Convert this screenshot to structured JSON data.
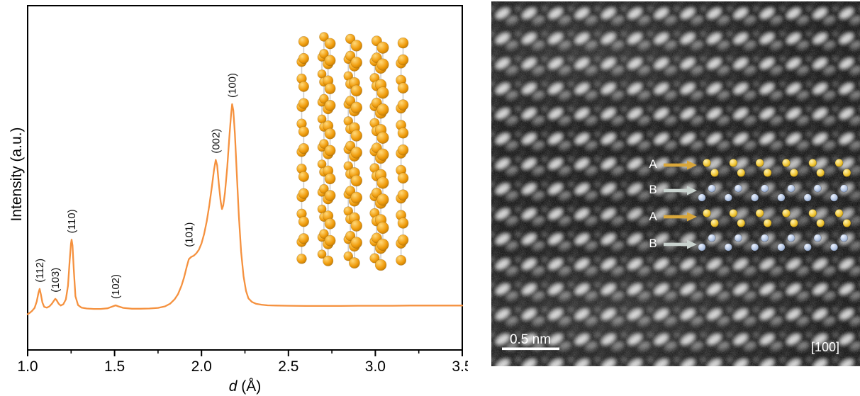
{
  "figure": {
    "background": "#ffffff"
  },
  "xrd_panel": {
    "ylabel": "Intensity (a.u.)",
    "xlabel_italic": "d",
    "xlabel_units": " (Å)",
    "axis_color": "#000000",
    "curve_color": "#F5913E",
    "tick_labels": [
      "1.0",
      "1.5",
      "2.0",
      "2.5",
      "3.0",
      "3.5"
    ]
  },
  "chart_data": {
    "type": "line",
    "title": "",
    "xlabel": "d (Å)",
    "ylabel": "Intensity (a.u.)",
    "xlim": [
      1.0,
      3.5
    ],
    "ylim_au": [
      0,
      110
    ],
    "grid": false,
    "legend": null,
    "x_major_ticks": [
      1.0,
      1.5,
      2.0,
      2.5,
      3.0,
      3.5
    ],
    "x_minor_ticks": [
      1.25,
      1.75,
      2.25,
      2.75,
      3.25
    ],
    "series": [
      {
        "name": "diffraction-intensity",
        "color": "#F5913E",
        "x": [
          1.0,
          1.01,
          1.025,
          1.04,
          1.052,
          1.062,
          1.069,
          1.076,
          1.085,
          1.095,
          1.11,
          1.125,
          1.14,
          1.152,
          1.159,
          1.166,
          1.178,
          1.19,
          1.205,
          1.22,
          1.232,
          1.242,
          1.249,
          1.253,
          1.258,
          1.265,
          1.275,
          1.29,
          1.31,
          1.34,
          1.38,
          1.42,
          1.46,
          1.49,
          1.506,
          1.522,
          1.55,
          1.6,
          1.65,
          1.7,
          1.75,
          1.79,
          1.82,
          1.845,
          1.865,
          1.885,
          1.9,
          1.915,
          1.927,
          1.94,
          1.955,
          1.97,
          1.985,
          2.0,
          2.015,
          2.03,
          2.045,
          2.06,
          2.072,
          2.082,
          2.09,
          2.1,
          2.11,
          2.118,
          2.125,
          2.135,
          2.148,
          2.16,
          2.17,
          2.176,
          2.183,
          2.192,
          2.203,
          2.215,
          2.228,
          2.242,
          2.256,
          2.27,
          2.29,
          2.315,
          2.345,
          2.38,
          2.43,
          2.5,
          2.6,
          2.7,
          2.8,
          2.9,
          3.0,
          3.1,
          3.2,
          3.3,
          3.4,
          3.5
        ],
        "y": [
          0.5,
          1.0,
          2.0,
          3.5,
          6.5,
          10.5,
          12.5,
          10.0,
          6.0,
          4.0,
          3.6,
          4.2,
          5.5,
          7.0,
          7.8,
          7.2,
          5.5,
          4.6,
          5.2,
          7.5,
          14,
          26,
          34,
          35.8,
          33,
          22,
          9,
          4.8,
          3.6,
          3.2,
          3.0,
          3.0,
          3.3,
          4.2,
          4.7,
          4.2,
          3.5,
          3.1,
          3.1,
          3.2,
          3.5,
          4.2,
          5.5,
          7.5,
          10,
          14,
          18,
          23,
          26.5,
          27.6,
          28.2,
          29.3,
          31,
          34,
          38.5,
          44.5,
          52,
          61,
          69,
          73.6,
          71,
          62,
          54,
          50.3,
          52,
          58,
          70,
          84,
          95,
          100,
          97,
          86,
          67,
          47,
          30,
          18.5,
          11.5,
          8,
          6.3,
          5.4,
          5.0,
          4.7,
          4.6,
          4.5,
          4.4,
          4.4,
          4.4,
          4.5,
          4.5,
          4.5,
          4.6,
          4.6,
          4.6,
          4.6
        ]
      }
    ],
    "peak_labels": [
      {
        "label": "(112)",
        "d": 1.069
      },
      {
        "label": "(103)",
        "d": 1.159
      },
      {
        "label": "(110)",
        "d": 1.253
      },
      {
        "label": "(102)",
        "d": 1.506
      },
      {
        "label": "(101)",
        "d": 1.927
      },
      {
        "label": "(002)",
        "d": 2.082
      },
      {
        "label": "(100)",
        "d": 2.176
      }
    ]
  },
  "inset": {
    "name": "wurtzite-ball-and-stick-model",
    "atom_color": "#EF9B08",
    "atom_gradient": [
      "#FFD97A",
      "#F09C0C",
      "#A86A02"
    ],
    "bond_color": "#CCCCCC"
  },
  "stem_panel": {
    "background": "#000000",
    "scale_bar_label": "0.5 nm",
    "zone_axis_label": "[100]",
    "text_color": "#FFFFFF",
    "rows": [
      {
        "label": "A",
        "arrow_color": "#D9A73A",
        "atom_type": "yellow"
      },
      {
        "label": "B",
        "arrow_color": "#C8D2CE",
        "atom_type": "blue"
      },
      {
        "label": "A",
        "arrow_color": "#D9A73A",
        "atom_type": "yellow"
      },
      {
        "label": "B",
        "arrow_color": "#C8D2CE",
        "atom_type": "blue"
      }
    ],
    "atom_colors": {
      "yellow": [
        "#FFF3B0",
        "#EFC32F",
        "#8F6A05"
      ],
      "blue": [
        "#F0F5FF",
        "#AFC2E2",
        "#5F7396"
      ]
    }
  }
}
